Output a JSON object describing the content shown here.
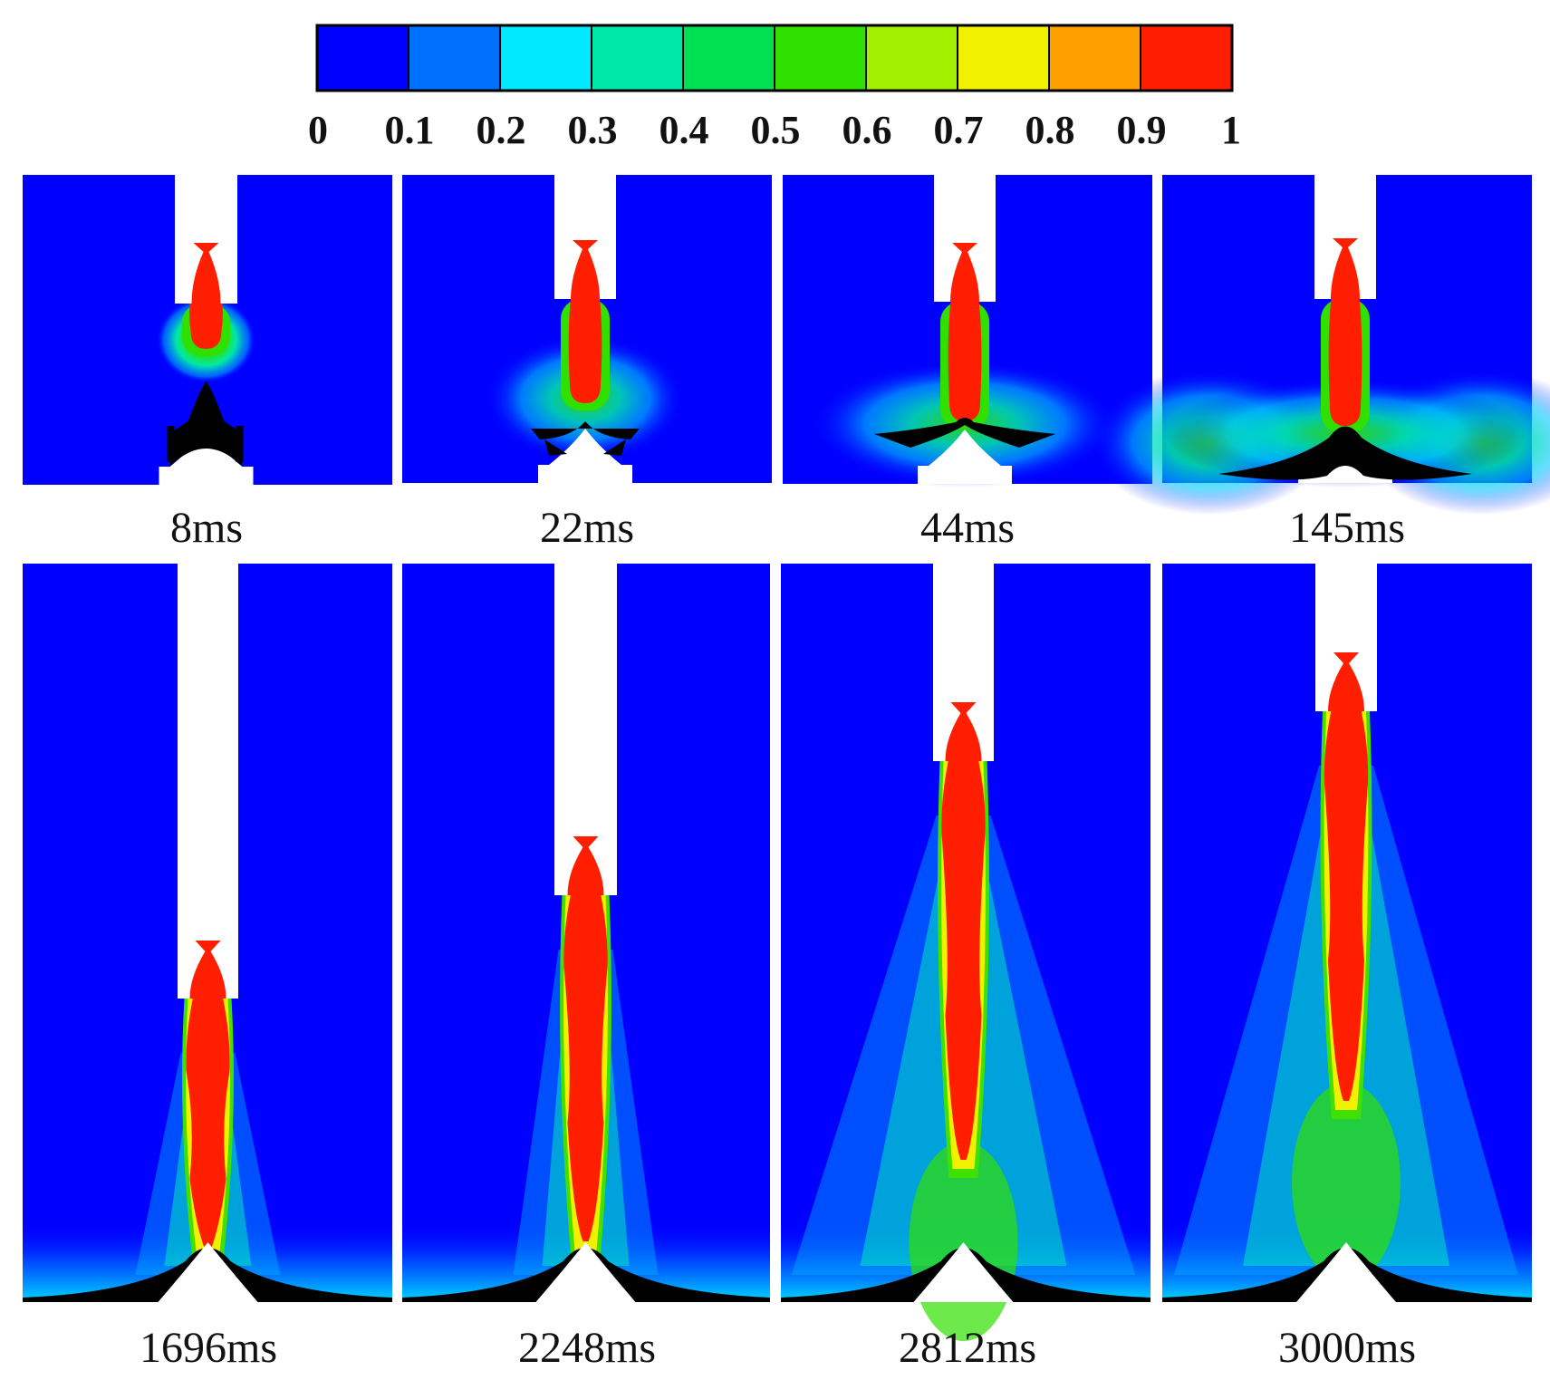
{
  "colorbar": {
    "min": 0,
    "max": 1,
    "segments": 10,
    "tick_labels": [
      "0",
      "0.1",
      "0.2",
      "0.3",
      "0.4",
      "0.5",
      "0.6",
      "0.7",
      "0.8",
      "0.9",
      "1"
    ],
    "colors": [
      "#0000ff",
      "#0070ff",
      "#00e8ff",
      "#00e8a8",
      "#00e050",
      "#30e000",
      "#a0f000",
      "#f0f000",
      "#ffa000",
      "#ff1e00"
    ]
  },
  "snapshots": [
    {
      "time_label": "8ms",
      "row": 1
    },
    {
      "time_label": "22ms",
      "row": 1
    },
    {
      "time_label": "44ms",
      "row": 1
    },
    {
      "time_label": "145ms",
      "row": 1
    },
    {
      "time_label": "1696ms",
      "row": 2
    },
    {
      "time_label": "2248ms",
      "row": 2
    },
    {
      "time_label": "2812ms",
      "row": 2
    },
    {
      "time_label": "3000ms",
      "row": 2
    }
  ],
  "colors": {
    "background_field": "#0000ff",
    "core": "#ff1e00",
    "solid_deposit": "#000000",
    "wall": "#ffffff"
  }
}
